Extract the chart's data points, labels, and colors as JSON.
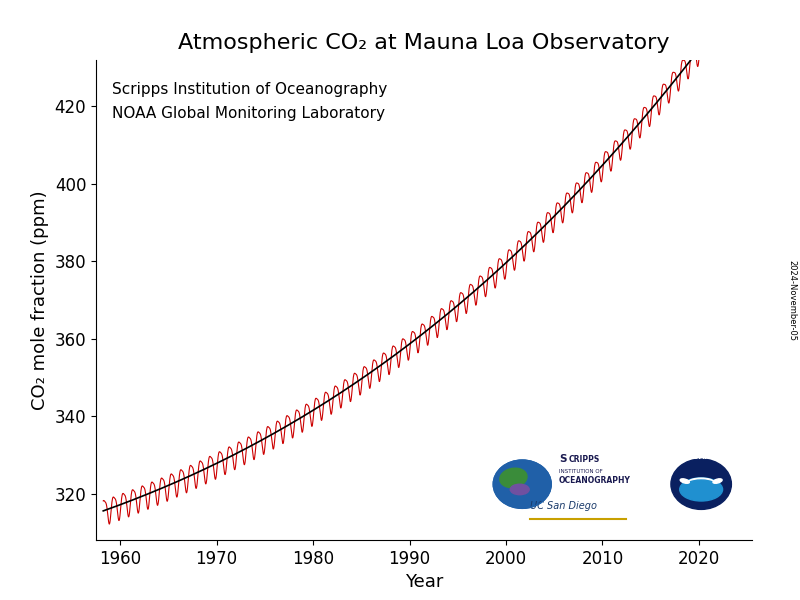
{
  "title": "Atmospheric CO₂ at Mauna Loa Observatory",
  "xlabel": "Year",
  "ylabel": "CO₂ mole fraction (ppm)",
  "annotation_line1": "Scripps Institution of Oceanography",
  "annotation_line2": "NOAA Global Monitoring Laboratory",
  "year_start": 1958.25,
  "year_end": 2024.85,
  "ylim": [
    308,
    432
  ],
  "xlim": [
    1957.5,
    2025.5
  ],
  "xticks": [
    1960,
    1970,
    1980,
    1990,
    2000,
    2010,
    2020
  ],
  "yticks": [
    320,
    340,
    360,
    380,
    400,
    420
  ],
  "line_color": "#cc0000",
  "trend_color": "#000000",
  "background_color": "#ffffff",
  "title_fontsize": 16,
  "label_fontsize": 13,
  "tick_fontsize": 12,
  "annotation_fontsize": 11,
  "date_text": "2024-November-05",
  "date_fontsize": 6,
  "fig_width": 8.0,
  "fig_height": 6.0,
  "dpi": 100
}
